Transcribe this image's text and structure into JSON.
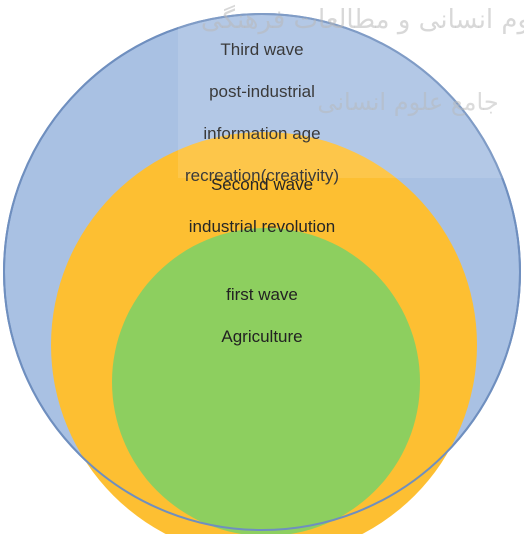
{
  "diagram": {
    "title": "",
    "rings": [
      {
        "id": "third",
        "lines": [
          "Third wave",
          "post-industrial",
          "information age",
          "recreation(creativity)"
        ],
        "fill": "#a9c1e3",
        "stroke": "#6f8fbf"
      },
      {
        "id": "second",
        "lines": [
          "Second wave",
          "industrial revolution"
        ],
        "fill": "#fdbf32",
        "stroke": "#f3b430"
      },
      {
        "id": "first",
        "lines": [
          "first wave",
          "Agriculture"
        ],
        "fill": "#8dcf5f",
        "stroke": "#7fc451"
      }
    ]
  },
  "watermark": {
    "lines": [
      "علوم انسانی و مطالعات فرهنگی",
      "جامع علوم انسانی"
    ],
    "color": "#b8b8b8"
  }
}
